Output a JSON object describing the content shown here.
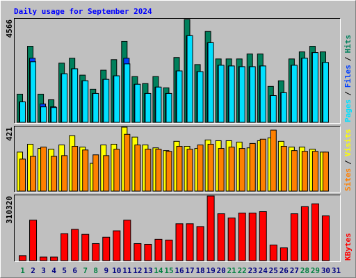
{
  "title": "Daily usage for September 2024",
  "legend_separator": "/",
  "chart_data": [
    {
      "type": "bar",
      "categories": [
        "1",
        "2",
        "3",
        "4",
        "5",
        "6",
        "7",
        "8",
        "9",
        "10",
        "11",
        "12",
        "13",
        "14",
        "15",
        "16",
        "17",
        "18",
        "19",
        "20",
        "21",
        "22",
        "23",
        "24",
        "25",
        "26",
        "27",
        "28",
        "29",
        "30",
        "31"
      ],
      "category_colors": [
        "#008040",
        "#000080",
        "#000080",
        "#000080",
        "#000080",
        "#000080",
        "#008040",
        "#008040",
        "#000080",
        "#000080",
        "#000080",
        "#000080",
        "#000080",
        "#008040",
        "#008040",
        "#000080",
        "#000080",
        "#000080",
        "#000080",
        "#000080",
        "#008040",
        "#008040",
        "#000080",
        "#000080",
        "#000080",
        "#000080",
        "#000080",
        "#008040",
        "#008040",
        "#000080",
        "#000080"
      ],
      "ylim": [
        0,
        4566
      ],
      "series": [
        {
          "name": "Hits",
          "color": "#00805c",
          "values": [
            1251,
            3377,
            1251,
            1001,
            2627,
            2846,
            2095,
            1470,
            2314,
            2783,
            3596,
            2033,
            1720,
            2033,
            1532,
            2877,
            4566,
            2564,
            4034,
            2814,
            2814,
            2814,
            3033,
            3033,
            1595,
            1845,
            2814,
            3127,
            3377,
            3127,
            0
          ]
        },
        {
          "name": "Files",
          "color": "#0040ff",
          "values": [
            907,
            2846,
            813,
            688,
            2158,
            2377,
            1845,
            1282,
            1907,
            2064,
            2846,
            1689,
            1282,
            1564,
            1282,
            2283,
            3846,
            2251,
            3534,
            2533,
            2502,
            2470,
            2470,
            2502,
            1188,
            1313,
            2533,
            2846,
            3096,
            2658,
            0
          ]
        },
        {
          "name": "Pages",
          "color": "#00e0ff",
          "values": [
            907,
            2689,
            688,
            657,
            2158,
            2377,
            1845,
            1282,
            1907,
            2064,
            2595,
            1689,
            1282,
            1564,
            1282,
            2283,
            3846,
            2251,
            3534,
            2533,
            2502,
            2470,
            2470,
            2502,
            1188,
            1313,
            2533,
            2846,
            3096,
            2658,
            0
          ]
        }
      ]
    },
    {
      "type": "bar",
      "ylim": [
        0,
        421
      ],
      "series": [
        {
          "name": "Visits",
          "color": "#ffff00",
          "values": [
            257,
            309,
            281,
            276,
            304,
            365,
            290,
            183,
            304,
            309,
            421,
            356,
            304,
            285,
            267,
            328,
            295,
            281,
            337,
            332,
            332,
            323,
            285,
            332,
            351,
            328,
            290,
            290,
            276,
            257,
            0
          ]
        },
        {
          "name": "Sites",
          "color": "#ff8000",
          "values": [
            211,
            229,
            290,
            229,
            234,
            295,
            271,
            239,
            234,
            276,
            374,
            304,
            276,
            276,
            262,
            295,
            276,
            304,
            309,
            281,
            290,
            281,
            314,
            342,
            402,
            295,
            267,
            262,
            262,
            257,
            0
          ]
        }
      ]
    },
    {
      "type": "bar",
      "ylim": [
        0,
        310320
      ],
      "series": [
        {
          "name": "KBytes",
          "color": "#ff0000",
          "values": [
            23870,
            194370,
            17050,
            17050,
            129580,
            150040,
            126170,
            81840,
            112530,
            143220,
            194370,
            81840,
            78430,
            102300,
            98890,
            177320,
            177320,
            163680,
            310320,
            225060,
            204600,
            228470,
            228470,
            235290,
            75020,
            61380,
            225060,
            259160,
            272800,
            214830,
            0
          ]
        }
      ]
    }
  ]
}
